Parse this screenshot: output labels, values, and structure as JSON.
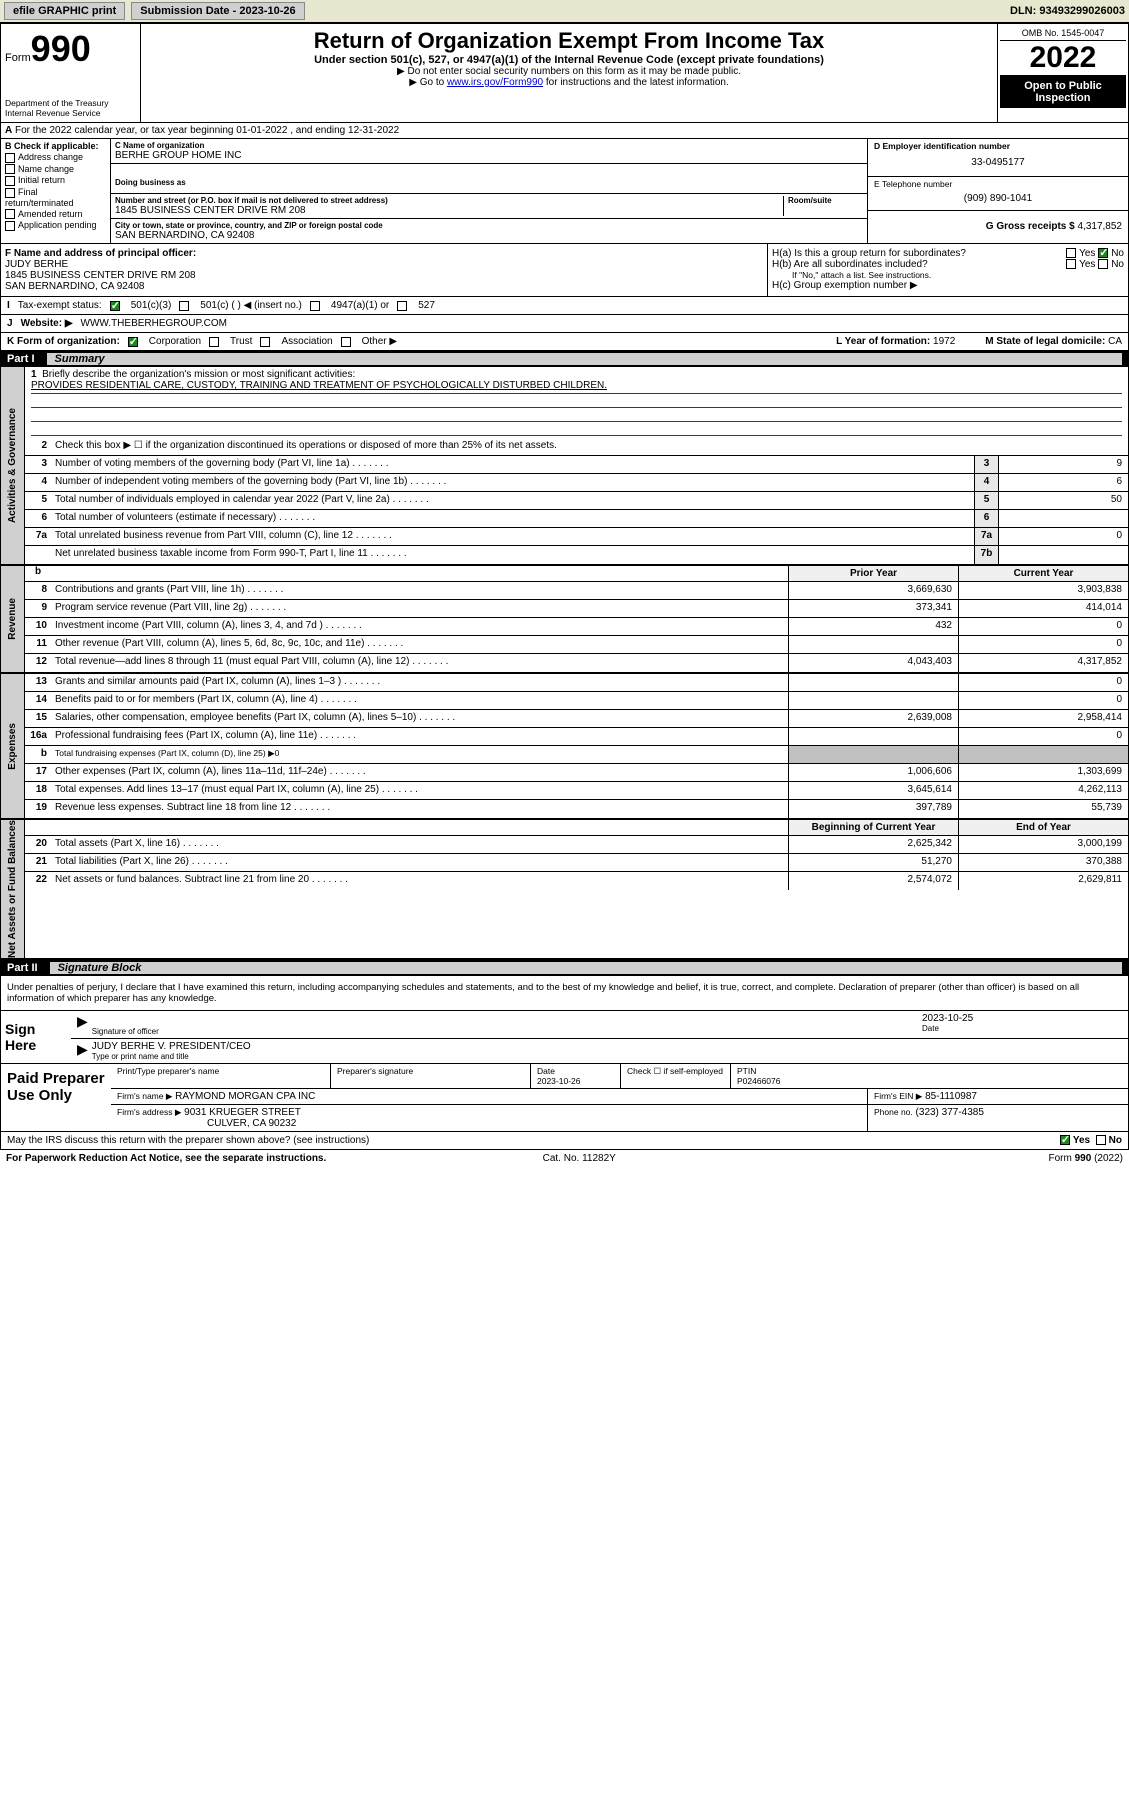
{
  "topbar": {
    "efile": "efile GRAPHIC print",
    "submission_label": "Submission Date - ",
    "submission_date": "2023-10-26",
    "dln_label": "DLN: ",
    "dln": "93493299026003"
  },
  "header": {
    "form_word": "Form",
    "form_num": "990",
    "dept": "Department of the Treasury\nInternal Revenue Service",
    "title": "Return of Organization Exempt From Income Tax",
    "sub": "Under section 501(c), 527, or 4947(a)(1) of the Internal Revenue Code (except private foundations)",
    "note1": "▶ Do not enter social security numbers on this form as it may be made public.",
    "note2_pre": "▶ Go to ",
    "note2_link": "www.irs.gov/Form990",
    "note2_post": " for instructions and the latest information.",
    "omb": "OMB No. 1545-0047",
    "year": "2022",
    "open": "Open to Public Inspection"
  },
  "section_a": "For the 2022 calendar year, or tax year beginning 01-01-2022   , and ending 12-31-2022",
  "check_b": {
    "title": "B Check if applicable:",
    "items": [
      "Address change",
      "Name change",
      "Initial return",
      "Final return/terminated",
      "Amended return",
      "Application pending"
    ]
  },
  "block_c": {
    "name_label": "C Name of organization",
    "name": "BERHE GROUP HOME INC",
    "dba_label": "Doing business as",
    "dba": "",
    "street_label": "Number and street (or P.O. box if mail is not delivered to street address)",
    "room_label": "Room/suite",
    "street": "1845 BUSINESS CENTER DRIVE RM 208",
    "city_label": "City or town, state or province, country, and ZIP or foreign postal code",
    "city": "SAN BERNARDINO, CA  92408"
  },
  "block_d": {
    "label": "D Employer identification number",
    "value": "33-0495177"
  },
  "block_e": {
    "label": "E Telephone number",
    "value": "(909) 890-1041"
  },
  "block_g": {
    "label": "G Gross receipts $",
    "value": "4,317,852"
  },
  "principal": {
    "label": "F  Name and address of principal officer:",
    "name": "JUDY BERHE",
    "addr1": "1845 BUSINESS CENTER DRIVE RM 208",
    "addr2": "SAN BERNARDINO, CA  92408"
  },
  "h": {
    "ha": "H(a)  Is this a group return for subordinates?",
    "ha_yes": "Yes",
    "ha_no": "No",
    "hb": "H(b)  Are all subordinates included?",
    "hb_yes": "Yes",
    "hb_no": "No",
    "hb_note": "If \"No,\" attach a list. See instructions.",
    "hc": "H(c)  Group exemption number ▶"
  },
  "status": {
    "label": "Tax-exempt status:",
    "o1": "501(c)(3)",
    "o2": "501(c) (  ) ◀ (insert no.)",
    "o3": "4947(a)(1) or",
    "o4": "527"
  },
  "website": {
    "label": "Website: ▶",
    "value": "WWW.THEBERHEGROUP.COM"
  },
  "k": {
    "label": "K Form of organization:",
    "o1": "Corporation",
    "o2": "Trust",
    "o3": "Association",
    "o4": "Other ▶",
    "l_label": "L Year of formation:",
    "l_val": "1972",
    "m_label": "M State of legal domicile:",
    "m_val": "CA"
  },
  "part1": {
    "name": "Part I",
    "title": "Summary"
  },
  "tabs": {
    "ag": "Activities & Governance",
    "rev": "Revenue",
    "exp": "Expenses",
    "na": "Net Assets or Fund Balances"
  },
  "mission": {
    "label": "Briefly describe the organization's mission or most significant activities:",
    "text": "PROVIDES RESIDENTIAL CARE, CUSTODY, TRAINING AND TREATMENT OF PSYCHOLOGICALLY DISTURBED CHILDREN."
  },
  "lines_ag": [
    {
      "n": "2",
      "t": "Check this box ▶ ☐  if the organization discontinued its operations or disposed of more than 25% of its net assets."
    },
    {
      "n": "3",
      "t": "Number of voting members of the governing body (Part VI, line 1a)",
      "c": "3",
      "v": "9"
    },
    {
      "n": "4",
      "t": "Number of independent voting members of the governing body (Part VI, line 1b)",
      "c": "4",
      "v": "6"
    },
    {
      "n": "5",
      "t": "Total number of individuals employed in calendar year 2022 (Part V, line 2a)",
      "c": "5",
      "v": "50"
    },
    {
      "n": "6",
      "t": "Total number of volunteers (estimate if necessary)",
      "c": "6",
      "v": ""
    },
    {
      "n": "7a",
      "t": "Total unrelated business revenue from Part VIII, column (C), line 12",
      "c": "7a",
      "v": "0"
    },
    {
      "n": "",
      "t": "Net unrelated business taxable income from Form 990-T, Part I, line 11",
      "c": "7b",
      "v": ""
    }
  ],
  "col_hdrs": {
    "prior": "Prior Year",
    "current": "Current Year",
    "boy": "Beginning of Current Year",
    "eoy": "End of Year"
  },
  "lines_rev": [
    {
      "n": "8",
      "t": "Contributions and grants (Part VIII, line 1h)",
      "p": "3,669,630",
      "c": "3,903,838"
    },
    {
      "n": "9",
      "t": "Program service revenue (Part VIII, line 2g)",
      "p": "373,341",
      "c": "414,014"
    },
    {
      "n": "10",
      "t": "Investment income (Part VIII, column (A), lines 3, 4, and 7d )",
      "p": "432",
      "c": "0"
    },
    {
      "n": "11",
      "t": "Other revenue (Part VIII, column (A), lines 5, 6d, 8c, 9c, 10c, and 11e)",
      "p": "",
      "c": "0"
    },
    {
      "n": "12",
      "t": "Total revenue—add lines 8 through 11 (must equal Part VIII, column (A), line 12)",
      "p": "4,043,403",
      "c": "4,317,852"
    }
  ],
  "lines_exp": [
    {
      "n": "13",
      "t": "Grants and similar amounts paid (Part IX, column (A), lines 1–3 )",
      "p": "",
      "c": "0"
    },
    {
      "n": "14",
      "t": "Benefits paid to or for members (Part IX, column (A), line 4)",
      "p": "",
      "c": "0"
    },
    {
      "n": "15",
      "t": "Salaries, other compensation, employee benefits (Part IX, column (A), lines 5–10)",
      "p": "2,639,008",
      "c": "2,958,414"
    },
    {
      "n": "16a",
      "t": "Professional fundraising fees (Part IX, column (A), line 11e)",
      "p": "",
      "c": "0"
    },
    {
      "n": "b",
      "t": "Total fundraising expenses (Part IX, column (D), line 25) ▶0",
      "shade": true
    },
    {
      "n": "17",
      "t": "Other expenses (Part IX, column (A), lines 11a–11d, 11f–24e)",
      "p": "1,006,606",
      "c": "1,303,699"
    },
    {
      "n": "18",
      "t": "Total expenses. Add lines 13–17 (must equal Part IX, column (A), line 25)",
      "p": "3,645,614",
      "c": "4,262,113"
    },
    {
      "n": "19",
      "t": "Revenue less expenses. Subtract line 18 from line 12",
      "p": "397,789",
      "c": "55,739"
    }
  ],
  "lines_na": [
    {
      "n": "20",
      "t": "Total assets (Part X, line 16)",
      "p": "2,625,342",
      "c": "3,000,199"
    },
    {
      "n": "21",
      "t": "Total liabilities (Part X, line 26)",
      "p": "51,270",
      "c": "370,388"
    },
    {
      "n": "22",
      "t": "Net assets or fund balances. Subtract line 21 from line 20",
      "p": "2,574,072",
      "c": "2,629,811"
    }
  ],
  "part2": {
    "name": "Part II",
    "title": "Signature Block"
  },
  "penalty": "Under penalties of perjury, I declare that I have examined this return, including accompanying schedules and statements, and to the best of my knowledge and belief, it is true, correct, and complete. Declaration of preparer (other than officer) is based on all information of which preparer has any knowledge.",
  "sign": {
    "here": "Sign Here",
    "sig_label": "Signature of officer",
    "date_label": "Date",
    "date": "2023-10-25",
    "name": "JUDY BERHE  V. PRESIDENT/CEO",
    "name_label": "Type or print name and title"
  },
  "prep": {
    "title": "Paid Preparer Use Only",
    "h1": "Print/Type preparer's name",
    "h2": "Preparer's signature",
    "h3": "Date",
    "h4": "Check ☐ if self-employed",
    "h5": "PTIN",
    "date": "2023-10-26",
    "ptin": "P02466076",
    "firm_label": "Firm's name    ▶",
    "firm": "RAYMOND MORGAN CPA INC",
    "ein_label": "Firm's EIN ▶",
    "ein": "85-1110987",
    "addr_label": "Firm's address ▶",
    "addr1": "9031 KRUEGER STREET",
    "addr2": "CULVER, CA  90232",
    "phone_label": "Phone no.",
    "phone": "(323) 377-4385"
  },
  "discuss": {
    "q": "May the IRS discuss this return with the preparer shown above? (see instructions)",
    "yes": "Yes",
    "no": "No"
  },
  "footer": {
    "left": "For Paperwork Reduction Act Notice, see the separate instructions.",
    "mid": "Cat. No. 11282Y",
    "right": "Form 990 (2022)"
  }
}
